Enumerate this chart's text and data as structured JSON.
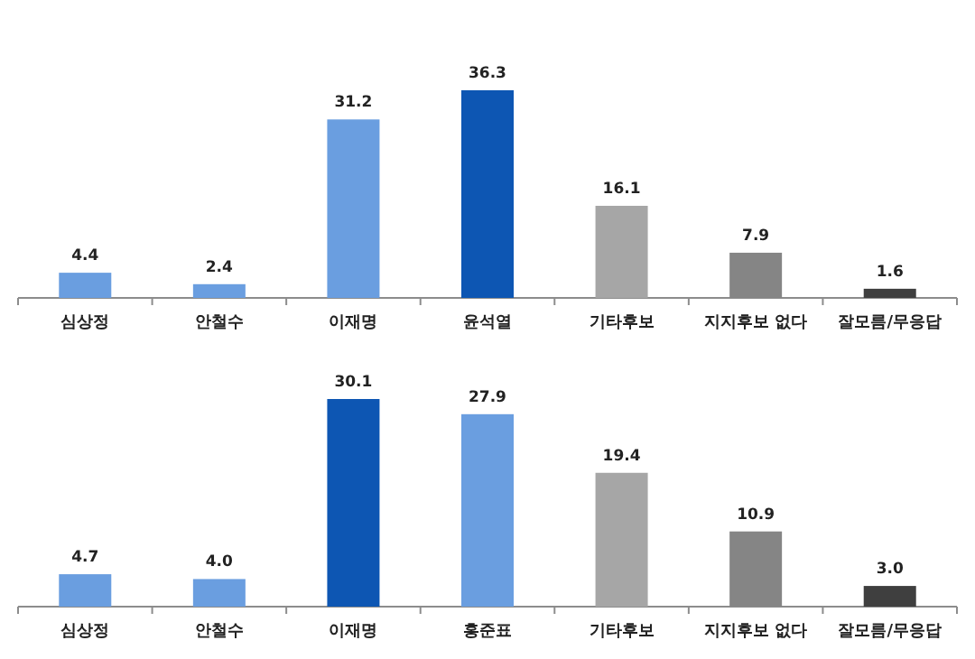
{
  "chart_data": [
    {
      "type": "bar",
      "categories": [
        "심상정",
        "안철수",
        "이재명",
        "윤석열",
        "기타후보",
        "지지후보 없다",
        "잘모름/무응답"
      ],
      "values": [
        4.4,
        2.4,
        31.2,
        36.3,
        16.1,
        7.9,
        1.6
      ],
      "value_labels": [
        "4.4",
        "2.4",
        "31.2",
        "36.3",
        "16.1",
        "7.9",
        "1.6"
      ],
      "colors": [
        "#6a9ee0",
        "#6a9ee0",
        "#6a9ee0",
        "#0d56b3",
        "#a6a6a6",
        "#858585",
        "#3f3f3f"
      ]
    },
    {
      "type": "bar",
      "categories": [
        "심상정",
        "안철수",
        "이재명",
        "홍준표",
        "기타후보",
        "지지후보 없다",
        "잘모름/무응답"
      ],
      "values": [
        4.7,
        4.0,
        30.1,
        27.9,
        19.4,
        10.9,
        3.0
      ],
      "value_labels": [
        "4.7",
        "4.0",
        "30.1",
        "27.9",
        "19.4",
        "10.9",
        "3.0"
      ],
      "colors": [
        "#6a9ee0",
        "#6a9ee0",
        "#0d56b3",
        "#6a9ee0",
        "#a6a6a6",
        "#858585",
        "#3f3f3f"
      ]
    }
  ]
}
